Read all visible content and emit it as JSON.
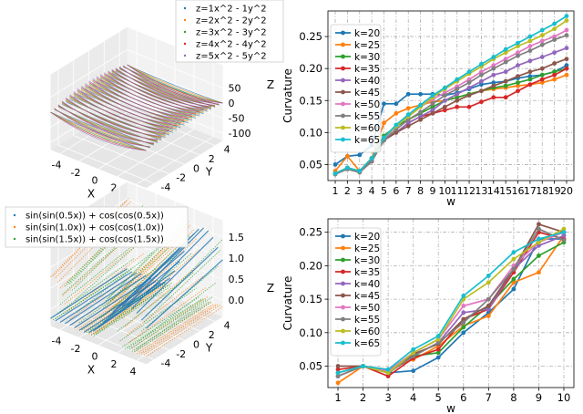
{
  "colors": [
    "#1f77b4",
    "#ff7f0e",
    "#2ca02c",
    "#d62728",
    "#9467bd",
    "#8c564b",
    "#e377c2",
    "#7f7f7f",
    "#bcbd22",
    "#17becf"
  ],
  "chart_data": [
    {
      "type": "surface3d",
      "legend": [
        "z=1x^2 - 1y^2",
        "z=2x^2 - 2y^2",
        "z=3x^2 - 3y^2",
        "z=4x^2 - 4y^2",
        "z=5x^2 - 5y^2"
      ],
      "xlabel": "X",
      "ylabel": "Y",
      "zlabel": "Z",
      "xticks": [
        "-4",
        "-2",
        "0",
        "2",
        "4"
      ],
      "yticks": [
        "-4",
        "-2",
        "0",
        "2",
        "4"
      ],
      "zticks": [
        "50",
        "0",
        "-50",
        "-100"
      ],
      "xlim": [
        -5,
        5
      ],
      "ylim": [
        -5,
        5
      ],
      "zlim": [
        -125,
        125
      ]
    },
    {
      "type": "line",
      "xlabel": "w",
      "ylabel": "Curvature",
      "x": [
        1,
        2,
        3,
        4,
        5,
        6,
        7,
        8,
        9,
        10,
        11,
        12,
        13,
        14,
        15,
        16,
        17,
        18,
        19,
        20
      ],
      "xticks": [
        "1",
        "2",
        "3",
        "4",
        "5",
        "6",
        "7",
        "8",
        "9",
        "10",
        "11",
        "12",
        "13",
        "14",
        "15",
        "16",
        "17",
        "18",
        "19",
        "20"
      ],
      "yticks": [
        "0.05",
        "0.10",
        "0.15",
        "0.20",
        "0.25"
      ],
      "ylim": [
        0.025,
        0.29
      ],
      "legend_position": "upper-left",
      "series": [
        {
          "name": "k=20",
          "values": [
            0.05,
            0.063,
            0.065,
            0.08,
            0.145,
            0.145,
            0.16,
            0.16,
            0.16,
            0.158,
            0.162,
            0.168,
            0.175,
            0.178,
            0.18,
            0.185,
            0.188,
            0.19,
            0.195,
            0.205
          ]
        },
        {
          "name": "k=25",
          "values": [
            0.04,
            0.063,
            0.04,
            0.06,
            0.115,
            0.13,
            0.138,
            0.143,
            0.148,
            0.15,
            0.155,
            0.16,
            0.165,
            0.168,
            0.17,
            0.173,
            0.175,
            0.178,
            0.183,
            0.19
          ]
        },
        {
          "name": "k=30",
          "values": [
            0.035,
            0.045,
            0.04,
            0.06,
            0.095,
            0.11,
            0.12,
            0.13,
            0.14,
            0.15,
            0.155,
            0.16,
            0.165,
            0.17,
            0.173,
            0.178,
            0.183,
            0.19,
            0.195,
            0.2
          ]
        },
        {
          "name": "k=35",
          "values": [
            0.036,
            0.045,
            0.038,
            0.055,
            0.09,
            0.1,
            0.115,
            0.125,
            0.13,
            0.135,
            0.14,
            0.14,
            0.148,
            0.155,
            0.155,
            0.165,
            0.175,
            0.183,
            0.19,
            0.2
          ]
        },
        {
          "name": "k=40",
          "values": [
            0.035,
            0.043,
            0.038,
            0.055,
            0.088,
            0.1,
            0.115,
            0.125,
            0.135,
            0.15,
            0.16,
            0.17,
            0.18,
            0.19,
            0.195,
            0.205,
            0.212,
            0.218,
            0.225,
            0.232
          ]
        },
        {
          "name": "k=45",
          "values": [
            0.035,
            0.043,
            0.038,
            0.058,
            0.088,
            0.1,
            0.11,
            0.12,
            0.13,
            0.14,
            0.15,
            0.158,
            0.165,
            0.173,
            0.18,
            0.188,
            0.195,
            0.2,
            0.208,
            0.215
          ]
        },
        {
          "name": "k=50",
          "values": [
            0.036,
            0.045,
            0.04,
            0.06,
            0.09,
            0.11,
            0.125,
            0.14,
            0.152,
            0.162,
            0.172,
            0.183,
            0.195,
            0.205,
            0.215,
            0.225,
            0.235,
            0.243,
            0.25,
            0.26
          ]
        },
        {
          "name": "k=55",
          "values": [
            0.035,
            0.043,
            0.038,
            0.055,
            0.088,
            0.105,
            0.12,
            0.132,
            0.145,
            0.158,
            0.168,
            0.178,
            0.19,
            0.2,
            0.21,
            0.22,
            0.228,
            0.237,
            0.245,
            0.252
          ]
        },
        {
          "name": "k=60",
          "values": [
            0.036,
            0.045,
            0.04,
            0.06,
            0.092,
            0.11,
            0.125,
            0.14,
            0.155,
            0.168,
            0.18,
            0.192,
            0.203,
            0.215,
            0.225,
            0.235,
            0.243,
            0.252,
            0.262,
            0.275
          ]
        },
        {
          "name": "k=65",
          "values": [
            0.036,
            0.045,
            0.04,
            0.06,
            0.092,
            0.112,
            0.128,
            0.143,
            0.158,
            0.17,
            0.183,
            0.195,
            0.207,
            0.218,
            0.23,
            0.24,
            0.25,
            0.26,
            0.27,
            0.282
          ]
        }
      ]
    },
    {
      "type": "surface3d",
      "legend": [
        "sin(sin(0.5x)) + cos(cos(0.5x))",
        "sin(sin(1.0x)) + cos(cos(1.0x))",
        "sin(sin(1.5x)) + cos(cos(1.5x))"
      ],
      "xlabel": "X",
      "ylabel": "Y",
      "zlabel": "Z",
      "xticks": [
        "-4",
        "-2",
        "0",
        "2",
        "4"
      ],
      "yticks": [
        "-4",
        "-2",
        "0",
        "2",
        "4"
      ],
      "zticks": [
        "1.5",
        "1.0",
        "0.5",
        "0.0"
      ],
      "xlim": [
        -5,
        5
      ],
      "ylim": [
        -5,
        5
      ],
      "zlim": [
        -0.4,
        1.9
      ]
    },
    {
      "type": "line",
      "xlabel": "w",
      "ylabel": "Curvature",
      "x": [
        1,
        2,
        3,
        4,
        5,
        6,
        7,
        8,
        9,
        10
      ],
      "xticks": [
        "1",
        "2",
        "3",
        "4",
        "5",
        "6",
        "7",
        "8",
        "9",
        "10"
      ],
      "yticks": [
        "0.05",
        "0.10",
        "0.15",
        "0.20",
        "0.25"
      ],
      "ylim": [
        0.018,
        0.27
      ],
      "legend_position": "upper-left",
      "series": [
        {
          "name": "k=20",
          "values": [
            0.04,
            0.05,
            0.04,
            0.043,
            0.063,
            0.1,
            0.13,
            0.165,
            0.24,
            0.24
          ]
        },
        {
          "name": "k=25",
          "values": [
            0.025,
            0.05,
            0.045,
            0.06,
            0.08,
            0.11,
            0.125,
            0.175,
            0.19,
            0.245
          ]
        },
        {
          "name": "k=30",
          "values": [
            0.035,
            0.05,
            0.04,
            0.065,
            0.07,
            0.108,
            0.14,
            0.18,
            0.215,
            0.235
          ]
        },
        {
          "name": "k=35",
          "values": [
            0.045,
            0.05,
            0.035,
            0.062,
            0.075,
            0.12,
            0.135,
            0.19,
            0.25,
            0.24
          ]
        },
        {
          "name": "k=40",
          "values": [
            0.035,
            0.05,
            0.042,
            0.065,
            0.085,
            0.13,
            0.135,
            0.195,
            0.23,
            0.245
          ]
        },
        {
          "name": "k=45",
          "values": [
            0.05,
            0.05,
            0.04,
            0.068,
            0.083,
            0.12,
            0.14,
            0.195,
            0.262,
            0.25
          ]
        },
        {
          "name": "k=50",
          "values": [
            0.035,
            0.05,
            0.043,
            0.07,
            0.09,
            0.14,
            0.15,
            0.2,
            0.235,
            0.25
          ]
        },
        {
          "name": "k=55",
          "values": [
            0.035,
            0.05,
            0.04,
            0.065,
            0.085,
            0.115,
            0.15,
            0.195,
            0.255,
            0.238
          ]
        },
        {
          "name": "k=60",
          "values": [
            0.04,
            0.05,
            0.04,
            0.07,
            0.09,
            0.15,
            0.175,
            0.21,
            0.235,
            0.255
          ]
        },
        {
          "name": "k=65",
          "values": [
            0.04,
            0.05,
            0.045,
            0.075,
            0.095,
            0.155,
            0.185,
            0.22,
            0.24,
            0.25
          ]
        }
      ]
    }
  ]
}
